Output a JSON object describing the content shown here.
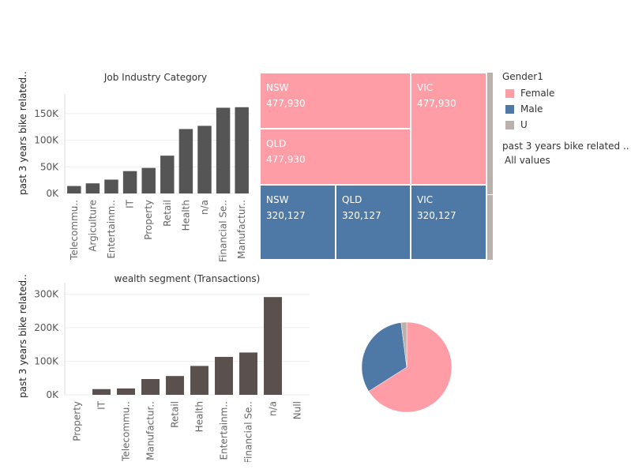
{
  "chart_data": [
    {
      "type": "bar",
      "title": "Job Industry Category",
      "ylabel": "past 3 years bike related..",
      "categories": [
        "Telecommu..",
        "Argiculture",
        "Entertainm..",
        "IT",
        "Property",
        "Retail",
        "Health",
        "n/a",
        "Financial Se..",
        "Manufactur.."
      ],
      "values": [
        14000,
        19000,
        26000,
        42000,
        48000,
        71000,
        121000,
        127000,
        161000,
        162000
      ],
      "yticks": [
        "0K",
        "50K",
        "100K",
        "150K"
      ],
      "ylim": [
        0,
        175000
      ],
      "color": "#555555"
    },
    {
      "type": "bar",
      "title": "wealth segment (Transactions)",
      "ylabel": "past 3 years bike related..",
      "categories": [
        "Property",
        "IT",
        "Telecommu..",
        "Manufactur..",
        "Retail",
        "Health",
        "Entertainm..",
        "Financial Se..",
        "n/a",
        "Null"
      ],
      "values": [
        0,
        17000,
        19000,
        47000,
        56000,
        86000,
        113000,
        126000,
        291000,
        0
      ],
      "yticks": [
        "0K",
        "100K",
        "200K",
        "300K"
      ],
      "ylim": [
        0,
        315000
      ],
      "color": "#5a504e"
    },
    {
      "type": "treemap",
      "cells": [
        {
          "state": "NSW",
          "value": "477,930",
          "group": "Female"
        },
        {
          "state": "QLD",
          "value": "477,930",
          "group": "Female"
        },
        {
          "state": "VIC",
          "value": "477,930",
          "group": "Female"
        },
        {
          "state": "NSW",
          "value": "320,127",
          "group": "Male"
        },
        {
          "state": "QLD",
          "value": "320,127",
          "group": "Male"
        },
        {
          "state": "VIC",
          "value": "320,127",
          "group": "Male"
        }
      ]
    },
    {
      "type": "pie",
      "slices": [
        {
          "name": "Female",
          "value": 0.66,
          "color": "#ff9da7"
        },
        {
          "name": "Male",
          "value": 0.32,
          "color": "#4e79a7"
        },
        {
          "name": "U",
          "value": 0.02,
          "color": "#bab0ac"
        }
      ]
    }
  ],
  "legend": {
    "title": "Gender1",
    "items": [
      {
        "label": "Female",
        "color": "#ff9da7"
      },
      {
        "label": "Male",
        "color": "#4e79a7"
      },
      {
        "label": "U",
        "color": "#bab0ac"
      }
    ],
    "filter_title": "past 3 years bike related ..",
    "filter_value": "All values"
  },
  "colors": {
    "female": "#ff9da7",
    "male": "#4e79a7",
    "unknown": "#bab0ac",
    "bar1": "#555555",
    "bar2": "#5a504e"
  }
}
